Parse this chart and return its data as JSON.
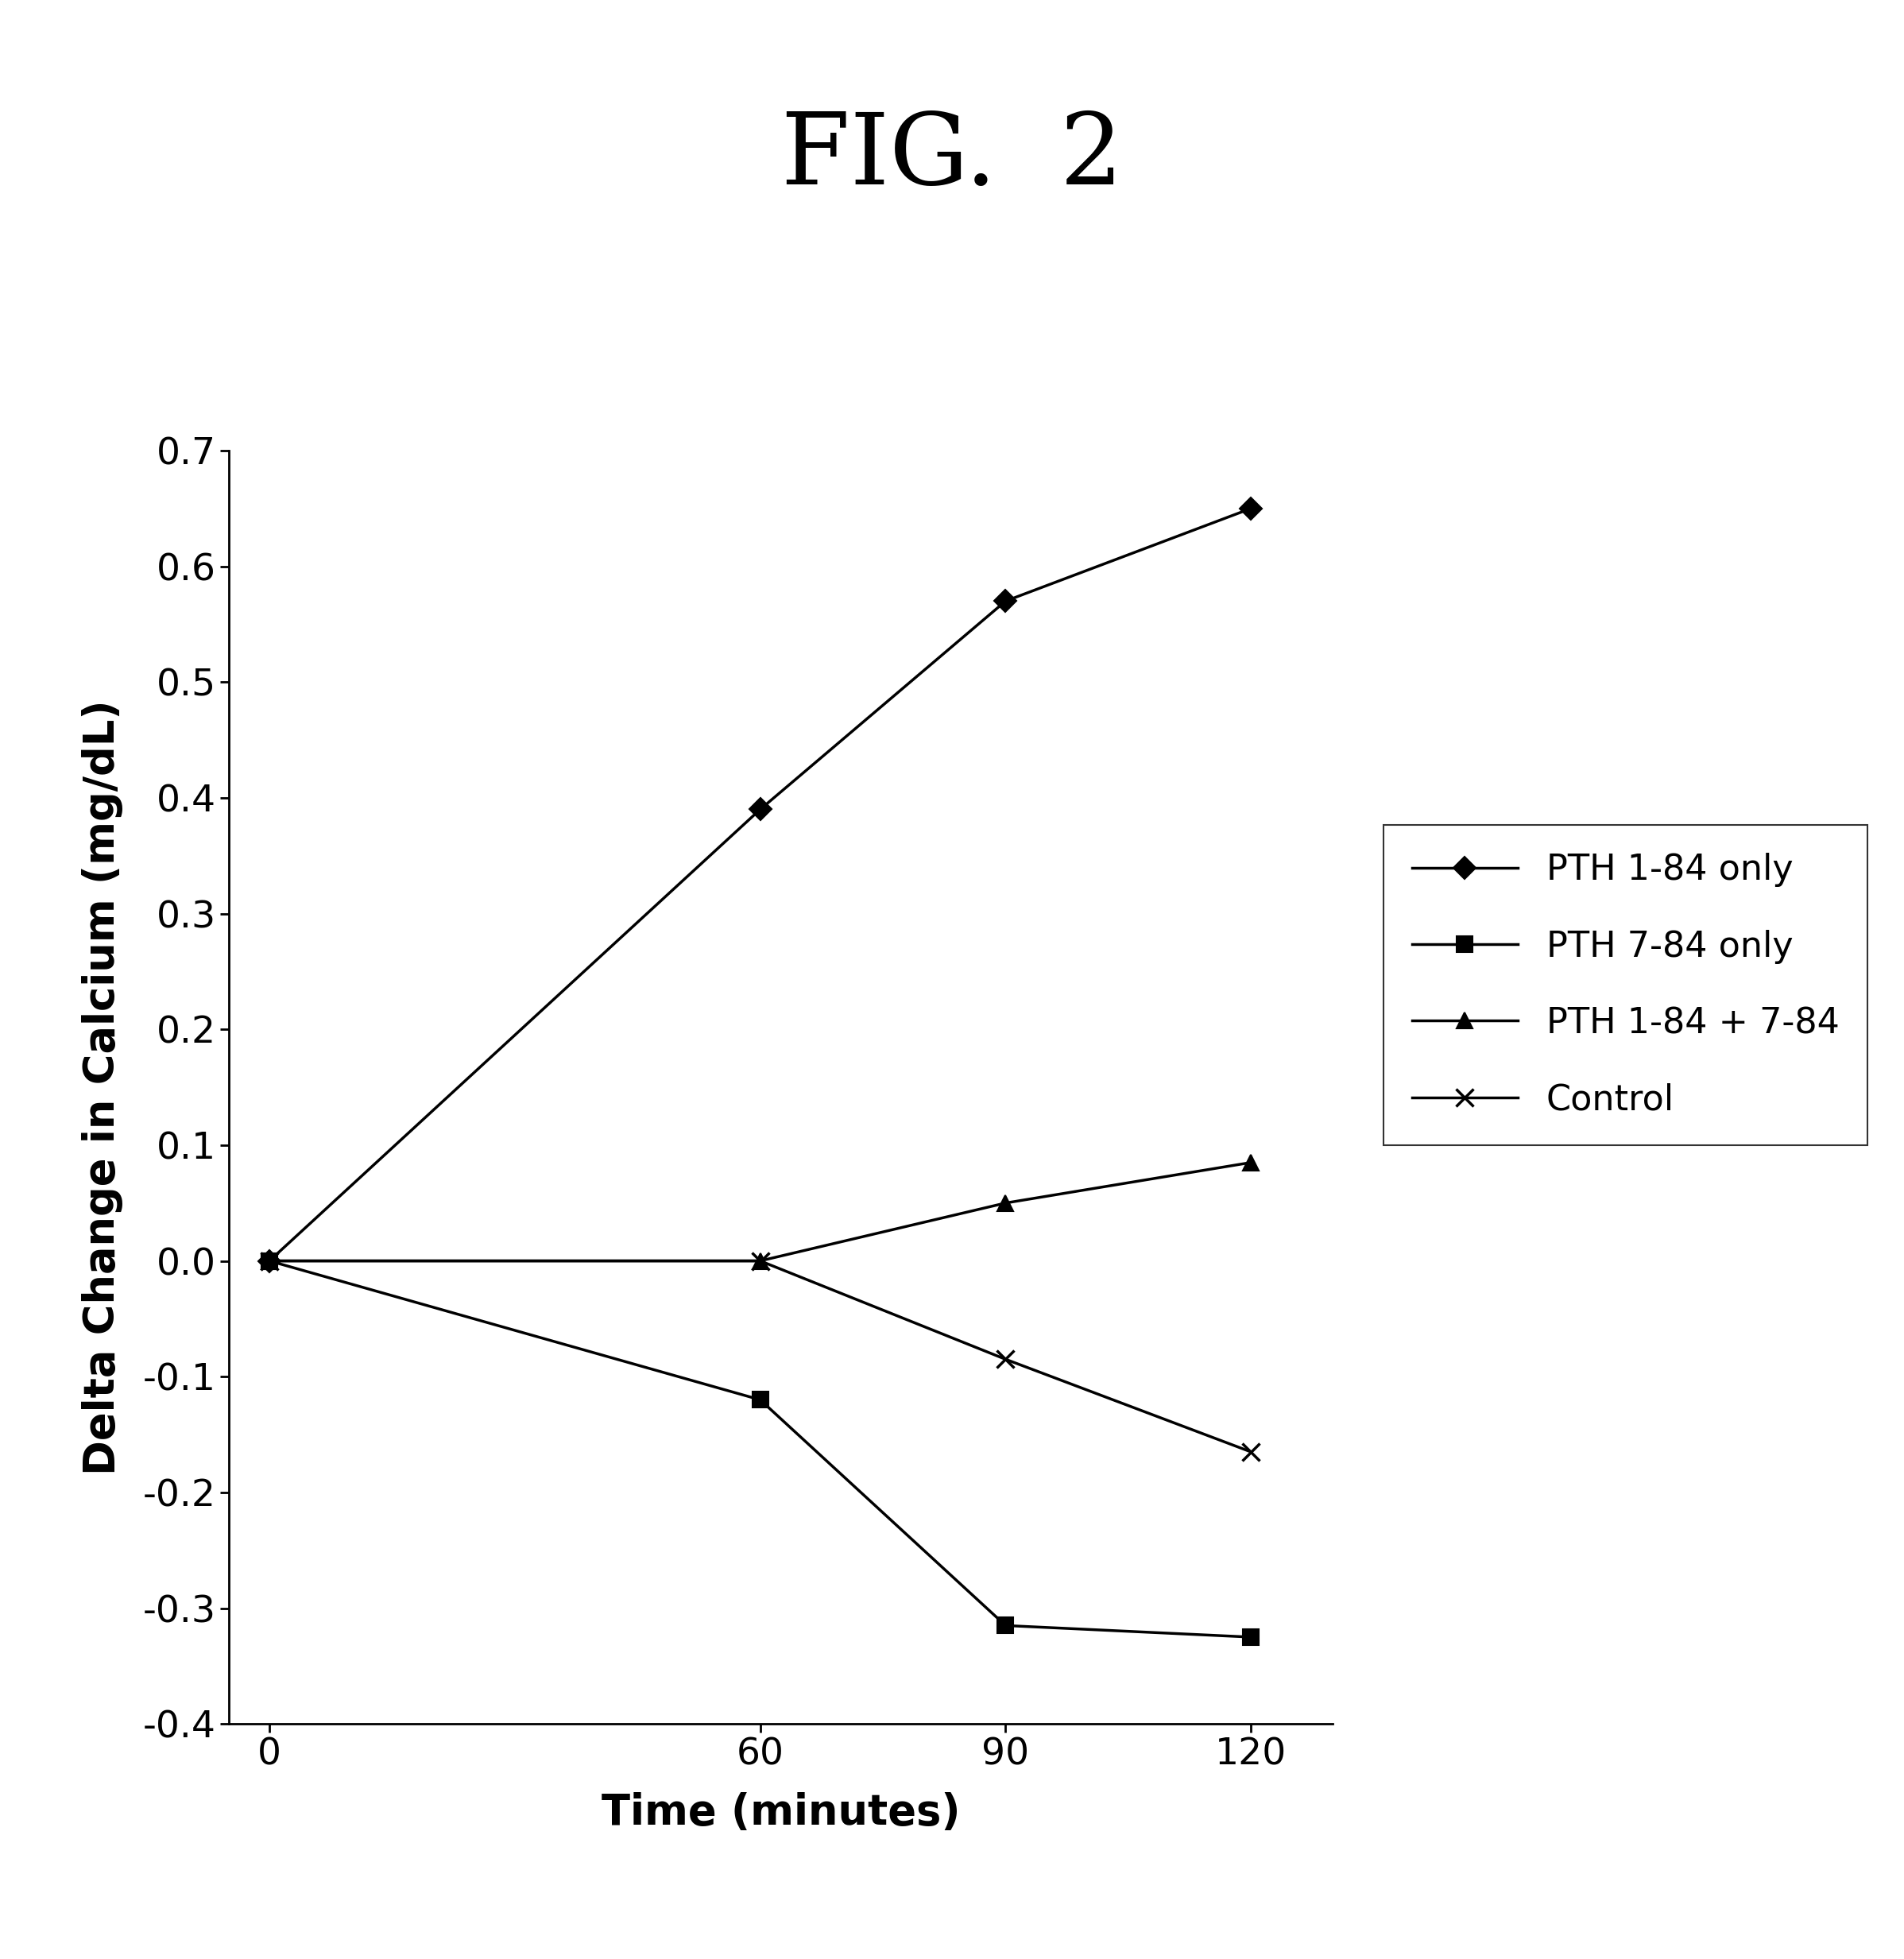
{
  "title": "FIG.  2",
  "xlabel": "Time (minutes)",
  "ylabel": "Delta Change in Calcium (mg/dL)",
  "x_values": [
    0,
    60,
    90,
    120
  ],
  "series": [
    {
      "label": "PTH 1-84 only",
      "y_values": [
        0.0,
        0.39,
        0.57,
        0.65
      ],
      "marker": "D",
      "color": "#000000",
      "markersize": 14,
      "linewidth": 2.5
    },
    {
      "label": "PTH 7-84 only",
      "y_values": [
        0.0,
        -0.12,
        -0.315,
        -0.325
      ],
      "marker": "s",
      "color": "#000000",
      "markersize": 14,
      "linewidth": 2.5
    },
    {
      "label": "PTH 1-84 + 7-84",
      "y_values": [
        0.0,
        0.0,
        0.05,
        0.085
      ],
      "marker": "^",
      "color": "#000000",
      "markersize": 14,
      "linewidth": 2.5
    },
    {
      "label": "Control",
      "y_values": [
        0.0,
        0.0,
        -0.085,
        -0.165
      ],
      "marker": "x",
      "color": "#000000",
      "markersize": 16,
      "linewidth": 2.5,
      "markeredgewidth": 2.5
    }
  ],
  "xlim": [
    -5,
    130
  ],
  "ylim": [
    -0.4,
    0.7
  ],
  "yticks": [
    -0.4,
    -0.3,
    -0.2,
    -0.1,
    0.0,
    0.1,
    0.2,
    0.3,
    0.4,
    0.5,
    0.6,
    0.7
  ],
  "xticks": [
    0,
    60,
    90,
    120
  ],
  "background_color": "#ffffff",
  "title_fontsize": 90,
  "axis_label_fontsize": 38,
  "tick_fontsize": 34,
  "legend_fontsize": 32
}
